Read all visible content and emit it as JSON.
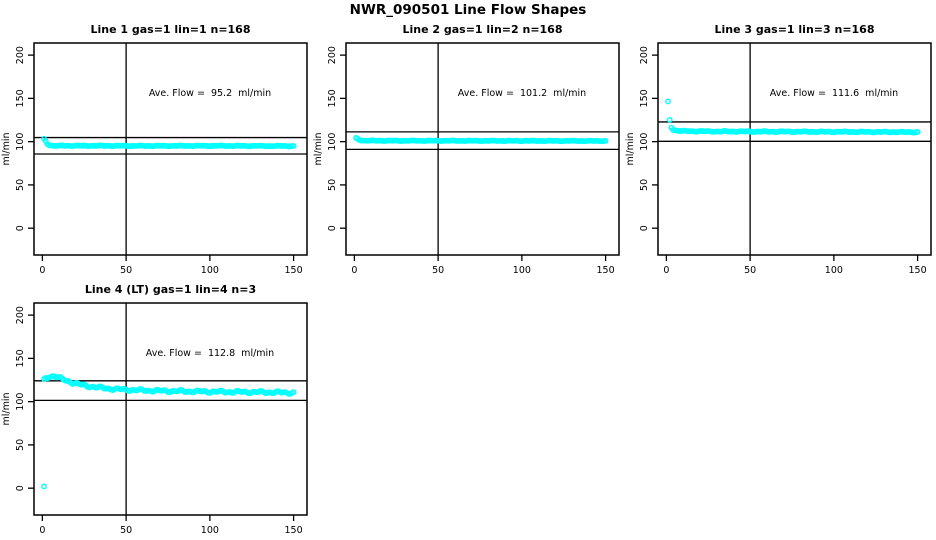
{
  "page_title": "NWR_090501  Line Flow Shapes",
  "style": {
    "point_color": "#00ffff",
    "axis_color": "#000000",
    "background": "#ffffff",
    "marker": "open-circle"
  },
  "axes": {
    "ylabel": "ml/min",
    "x_ticks": [
      0,
      50,
      100,
      150
    ],
    "y_ticks": [
      0,
      50,
      100,
      150,
      200
    ],
    "xlim": [
      -5,
      158
    ],
    "ylim": [
      -31,
      214
    ],
    "grid": "off"
  },
  "chart_data": [
    {
      "type": "scatter",
      "title": "Line 1 gas=1 lin=1 n=168",
      "annotation": "Ave. Flow =  95.2  ml/min",
      "ave_flow_ml_min": 95.2,
      "n": 168,
      "vline_x": 50,
      "ref_lines": [
        104.7,
        85.7
      ],
      "x_range": [
        1,
        150
      ],
      "point_step": 1,
      "jitter": 0.5,
      "shape_breakpoints": [
        [
          1,
          103
        ],
        [
          2,
          100.5
        ],
        [
          3,
          97.5
        ],
        [
          4,
          96.3
        ],
        [
          5,
          95.6
        ],
        [
          8,
          95.2
        ],
        [
          20,
          95.3
        ],
        [
          60,
          95.1
        ],
        [
          100,
          95.2
        ],
        [
          150,
          94.9
        ]
      ],
      "extra_points": []
    },
    {
      "type": "scatter",
      "title": "Line 2 gas=1 lin=2 n=168",
      "annotation": "Ave. Flow =  101.2  ml/min",
      "ave_flow_ml_min": 101.2,
      "n": 168,
      "vline_x": 50,
      "ref_lines": [
        111.3,
        91.1
      ],
      "x_range": [
        1,
        150
      ],
      "point_step": 1,
      "jitter": 0.4,
      "shape_breakpoints": [
        [
          1,
          104
        ],
        [
          2,
          103.2
        ],
        [
          3,
          102.2
        ],
        [
          4,
          101.6
        ],
        [
          6,
          101.2
        ],
        [
          15,
          101.1
        ],
        [
          60,
          101.0
        ],
        [
          100,
          100.9
        ],
        [
          150,
          100.8
        ]
      ],
      "extra_points": []
    },
    {
      "type": "scatter",
      "title": "Line 3 gas=1 lin=3 n=168",
      "annotation": "Ave. Flow =  111.6  ml/min",
      "ave_flow_ml_min": 111.6,
      "n": 168,
      "vline_x": 50,
      "ref_lines": [
        122.8,
        100.4
      ],
      "x_range": [
        1,
        150
      ],
      "point_step": 1,
      "jitter": 0.6,
      "shape_breakpoints": [
        [
          1,
          146
        ],
        [
          2,
          125
        ],
        [
          3,
          116.5
        ],
        [
          4,
          114
        ],
        [
          6,
          112.8
        ],
        [
          10,
          112.2
        ],
        [
          30,
          111.8
        ],
        [
          80,
          111.5
        ],
        [
          150,
          111.0
        ]
      ],
      "extra_points": []
    },
    {
      "type": "scatter",
      "title": "Line 4 (LT) gas=1 lin=4 n=3",
      "annotation": "Ave. Flow =  112.8  ml/min",
      "ave_flow_ml_min": 112.8,
      "n": 3,
      "vline_x": 50,
      "ref_lines": [
        124.1,
        101.5
      ],
      "x_range": [
        1,
        150
      ],
      "point_step": 1,
      "jitter": 1.6,
      "shape_breakpoints": [
        [
          1,
          125
        ],
        [
          2,
          127
        ],
        [
          4,
          129
        ],
        [
          7,
          129.5
        ],
        [
          10,
          127.5
        ],
        [
          14,
          124.5
        ],
        [
          18,
          122
        ],
        [
          22,
          120
        ],
        [
          27,
          118
        ],
        [
          33,
          116.5
        ],
        [
          40,
          115
        ],
        [
          50,
          113.8
        ],
        [
          60,
          113
        ],
        [
          75,
          112.3
        ],
        [
          90,
          111.8
        ],
        [
          110,
          111.3
        ],
        [
          130,
          111
        ],
        [
          150,
          110.3
        ]
      ],
      "extra_points": [
        [
          1,
          2
        ]
      ]
    }
  ]
}
